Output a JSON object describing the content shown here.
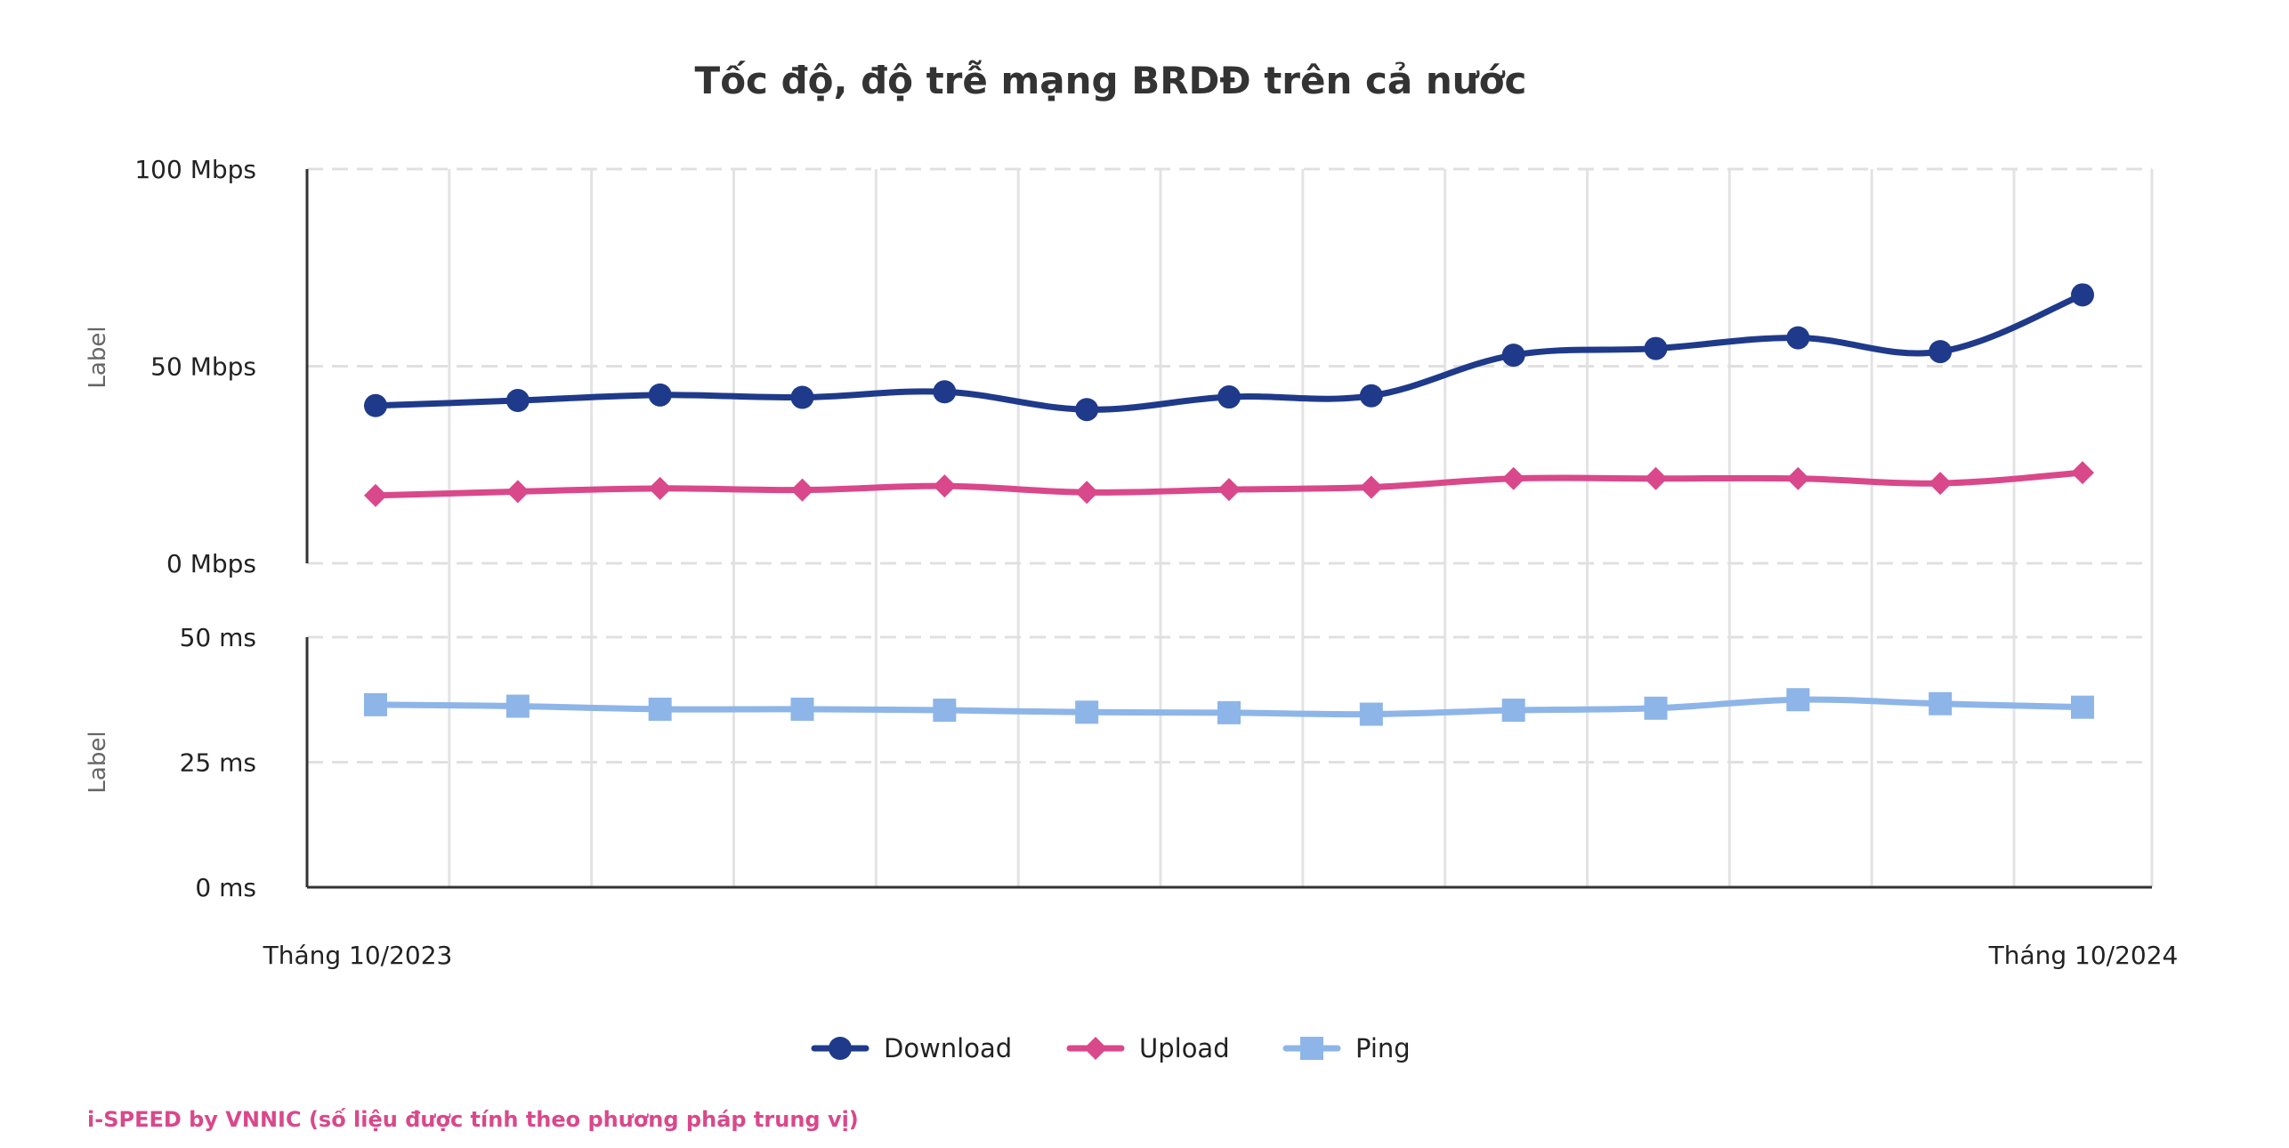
{
  "chart_data": {
    "type": "line",
    "title": "Tốc độ, độ trễ mạng BRDĐ trên cả nước",
    "x_first_label": "Tháng 10/2023",
    "x_last_label": "Tháng 10/2024",
    "grid": true,
    "legend_position": "bottom",
    "panels": [
      {
        "name": "speed",
        "ylabel": "Label",
        "ylim": [
          0,
          100
        ],
        "yticks": [
          "0 Mbps",
          "50 Mbps",
          "100 Mbps"
        ],
        "ytick_values": [
          0,
          50,
          100
        ]
      },
      {
        "name": "latency",
        "ylabel": "Label",
        "ylim": [
          0,
          50
        ],
        "yticks": [
          "0 ms",
          "25 ms",
          "50 ms"
        ],
        "ytick_values": [
          0,
          25,
          50
        ]
      }
    ],
    "series": [
      {
        "name": "Download",
        "panel": 0,
        "color": "#1f3a8a",
        "marker": "circle",
        "values": [
          40,
          41.3,
          42.7,
          42.1,
          43.5,
          39,
          42.2,
          42.5,
          52.8,
          54.5,
          57.2,
          53.7,
          68.1
        ]
      },
      {
        "name": "Upload",
        "panel": 0,
        "color": "#d9488b",
        "marker": "diamond",
        "values": [
          17.2,
          18.2,
          19,
          18.6,
          19.6,
          18,
          18.7,
          19.3,
          21.5,
          21.5,
          21.5,
          20.3,
          23
        ]
      },
      {
        "name": "Ping",
        "panel": 1,
        "color": "#8db5e8",
        "marker": "square",
        "values": [
          36.5,
          36.2,
          35.6,
          35.6,
          35.4,
          35,
          34.9,
          34.6,
          35.4,
          35.8,
          37.5,
          36.7,
          36
        ]
      }
    ]
  },
  "footer": {
    "text": "i-SPEED by VNNIC (số liệu được tính theo phương pháp trung vị)",
    "color": "#d9488b"
  }
}
